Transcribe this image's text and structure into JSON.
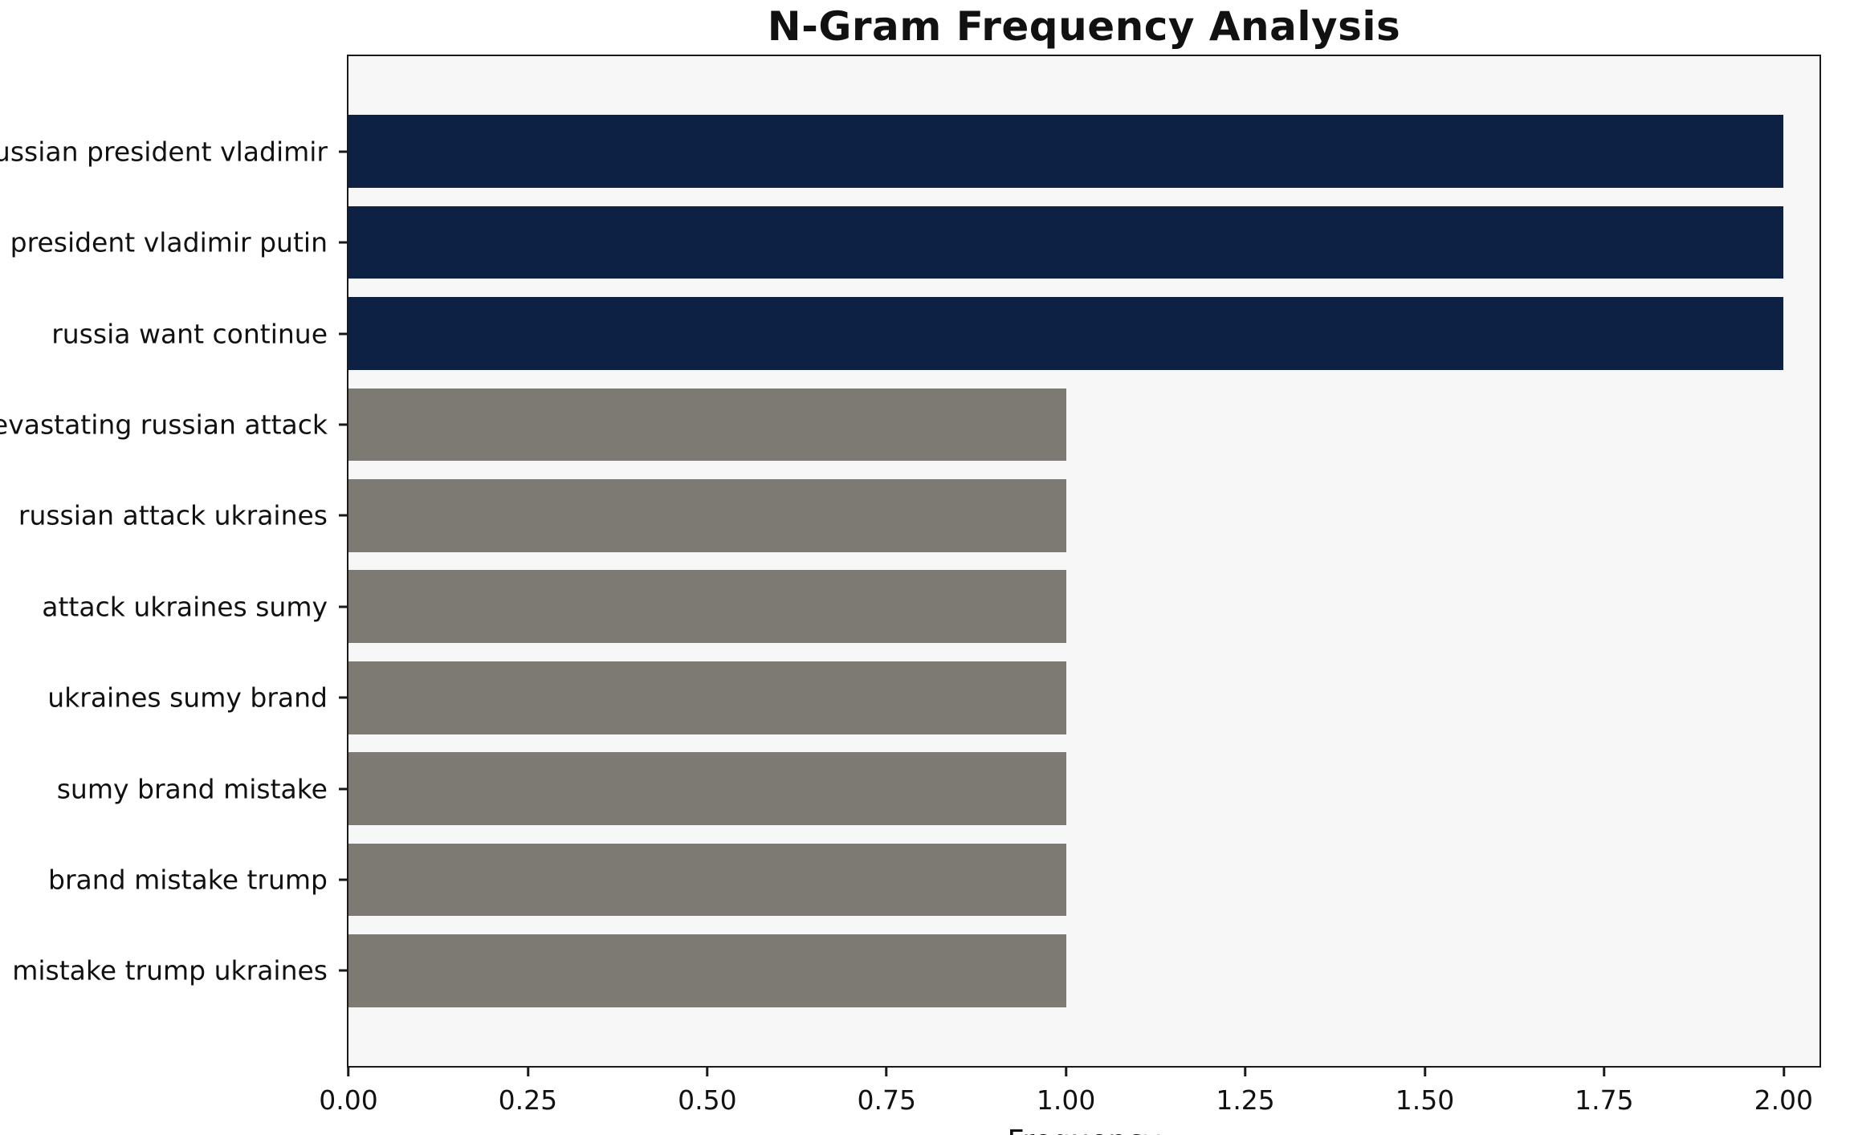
{
  "chart_data": {
    "type": "bar",
    "orientation": "horizontal",
    "title": "N-Gram Frequency Analysis",
    "xlabel": "Frequency",
    "ylabel": "",
    "categories": [
      "russian president vladimir",
      "president vladimir putin",
      "russia want continue",
      "devastating russian attack",
      "russian attack ukraines",
      "attack ukraines sumy",
      "ukraines sumy brand",
      "sumy brand mistake",
      "brand mistake trump",
      "mistake trump ukraines"
    ],
    "values": [
      2,
      2,
      2,
      1,
      1,
      1,
      1,
      1,
      1,
      1
    ],
    "bar_colors": [
      "#0c2144",
      "#0c2144",
      "#0c2144",
      "#7c7a73",
      "#7c7a73",
      "#7c7a73",
      "#7c7a73",
      "#7c7a73",
      "#7c7a73",
      "#7c7a73"
    ],
    "xlim": [
      0,
      2.05
    ],
    "xticks": [
      0.0,
      0.25,
      0.5,
      0.75,
      1.0,
      1.25,
      1.5,
      1.75,
      2.0
    ],
    "xtick_labels": [
      "0.00",
      "0.25",
      "0.50",
      "0.75",
      "1.00",
      "1.25",
      "1.50",
      "1.75",
      "2.00"
    ],
    "grid": false,
    "legend": null,
    "colors": {
      "highlight_navy": "#0c2144",
      "base_gray": "#7c7a73",
      "plot_background": "#f7f7f7",
      "figure_background": "#ffffff",
      "spine": "#1a1a1a"
    }
  }
}
